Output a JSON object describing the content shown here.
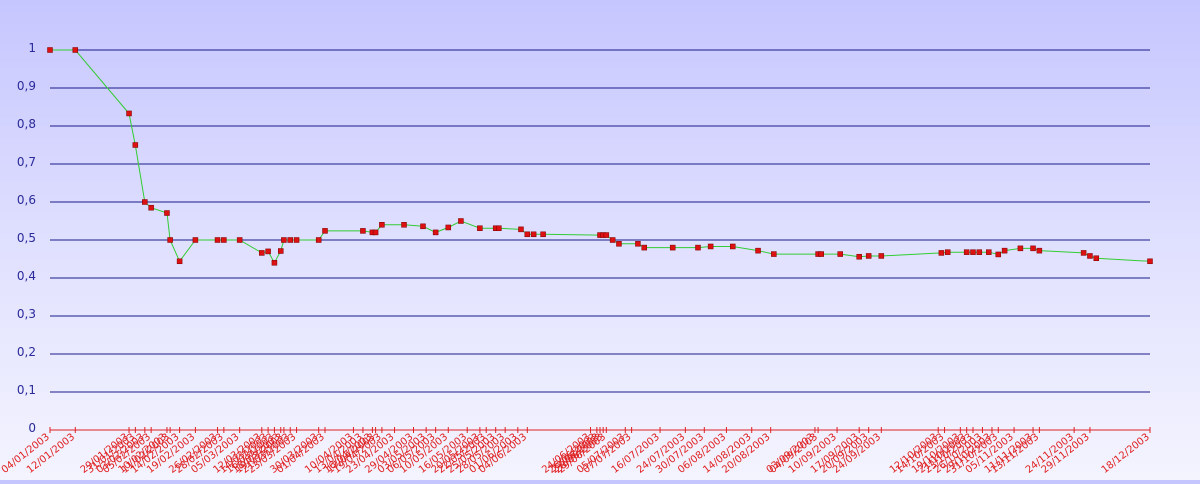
{
  "chart_data": {
    "type": "line",
    "title": "",
    "xlabel": "",
    "ylabel": "",
    "ylim": [
      0,
      1
    ],
    "yticks": [
      0,
      0.1,
      0.2,
      0.3,
      0.4,
      0.5,
      0.6,
      0.7,
      0.8,
      0.9,
      1
    ],
    "ytick_labels": [
      "0",
      "0,1",
      "0,2",
      "0,3",
      "0,4",
      "0,5",
      "0,6",
      "0,7",
      "0,8",
      "0,9",
      "1"
    ],
    "xlim": [
      "04/01/2003",
      "18/12/2003"
    ],
    "grid": true,
    "legend": "none",
    "colors": {
      "line": "#33cc33",
      "marker": "#dd1111",
      "grid": "#1a1a88",
      "ytick": "#2a2a9a",
      "xtick": "#e02020"
    },
    "series": [
      {
        "points": [
          [
            "04/01/2003",
            1.0
          ],
          [
            "12/01/2003",
            1.0
          ],
          [
            "29/01/2003",
            0.833
          ],
          [
            "31/01/2003",
            0.75
          ],
          [
            "03/02/2003",
            0.6
          ],
          [
            "05/02/2003",
            0.585
          ],
          [
            "10/02/2003",
            0.571
          ],
          [
            "11/02/2003",
            0.5
          ],
          [
            "14/02/2003",
            0.444
          ],
          [
            "19/02/2003",
            0.5
          ],
          [
            "26/02/2003",
            0.5
          ],
          [
            "28/02/2003",
            0.5
          ],
          [
            "05/03/2003",
            0.5
          ],
          [
            "12/03/2003",
            0.466
          ],
          [
            "14/03/2003",
            0.47
          ],
          [
            "16/03/2003",
            0.44
          ],
          [
            "18/03/2003",
            0.471
          ],
          [
            "19/03/2003",
            0.5
          ],
          [
            "21/03/2003",
            0.5
          ],
          [
            "23/03/2003",
            0.5
          ],
          [
            "30/03/2003",
            0.5
          ],
          [
            "01/04/2003",
            0.524
          ],
          [
            "13/04/2003",
            0.524
          ],
          [
            "16/04/2003",
            0.52
          ],
          [
            "17/04/2003",
            0.52
          ],
          [
            "19/04/2003",
            0.54
          ],
          [
            "26/04/2003",
            0.54
          ],
          [
            "02/05/2003",
            0.536
          ],
          [
            "06/05/2003",
            0.52
          ],
          [
            "10/05/2003",
            0.533
          ],
          [
            "14/05/2003",
            0.55
          ],
          [
            "20/05/2003",
            0.531
          ],
          [
            "25/05/2003",
            0.531
          ],
          [
            "26/05/2003",
            0.531
          ],
          [
            "02/06/2003",
            0.528
          ],
          [
            "04/06/2003",
            0.515
          ],
          [
            "06/06/2003",
            0.515
          ],
          [
            "09/06/2003",
            0.515
          ],
          [
            "27/06/2003",
            0.513
          ],
          [
            "28/06/2003",
            0.513
          ],
          [
            "29/06/2003",
            0.513
          ],
          [
            "01/07/2003",
            0.5
          ],
          [
            "03/07/2003",
            0.49
          ],
          [
            "09/07/2003",
            0.49
          ],
          [
            "11/07/2003",
            0.48
          ],
          [
            "20/07/2003",
            0.48
          ],
          [
            "28/07/2003",
            0.48
          ],
          [
            "01/08/2003",
            0.483
          ],
          [
            "08/08/2003",
            0.483
          ],
          [
            "16/08/2003",
            0.472
          ],
          [
            "21/08/2003",
            0.463
          ],
          [
            "04/09/2003",
            0.463
          ],
          [
            "05/09/2003",
            0.463
          ],
          [
            "11/09/2003",
            0.463
          ],
          [
            "17/09/2003",
            0.456
          ],
          [
            "20/09/2003",
            0.458
          ],
          [
            "24/09/2003",
            0.458
          ],
          [
            "13/10/2003",
            0.466
          ],
          [
            "15/10/2003",
            0.468
          ],
          [
            "21/10/2003",
            0.468
          ],
          [
            "23/10/2003",
            0.468
          ],
          [
            "25/10/2003",
            0.468
          ],
          [
            "28/10/2003",
            0.468
          ],
          [
            "31/10/2003",
            0.462
          ],
          [
            "02/11/2003",
            0.472
          ],
          [
            "07/11/2003",
            0.478
          ],
          [
            "11/11/2003",
            0.478
          ],
          [
            "13/11/2003",
            0.472
          ],
          [
            "27/11/2003",
            0.466
          ],
          [
            "29/11/2003",
            0.458
          ],
          [
            "01/12/2003",
            0.452
          ],
          [
            "18/12/2003",
            0.444
          ]
        ]
      }
    ],
    "x_tick_labels": [
      "04/01/2003",
      "12/01/2003",
      "29/01/2003",
      "31/01/2003",
      "03/02/2003",
      "05/02/2003",
      "10/02/2003",
      "11/02/2003",
      "14/02/2003",
      "19/02/2003",
      "26/02/2003",
      "28/02/2003",
      "05/03/2003",
      "12/03/2003",
      "14/03/2003",
      "16/03/2003",
      "18/03/2003",
      "19/03/2003",
      "21/03/2003",
      "23/03/2003",
      "30/03/2003",
      "01/04/2003",
      "10/04/2003",
      "13/04/2003",
      "16/04/2003",
      "17/04/2003",
      "19/04/2003",
      "23/04/2003",
      "29/04/2003",
      "03/05/2003",
      "06/05/2003",
      "10/05/2003",
      "16/05/2003",
      "20/05/2003",
      "22/05/2003",
      "25/05/2003",
      "28/05/2003",
      "01/06/2003",
      "04/06/2003",
      "24/06/2003",
      "26/06/2003",
      "27/06/2003",
      "28/06/2003",
      "29/06/2003",
      "05/07/2003",
      "07/07/2003",
      "16/07/2003",
      "24/07/2003",
      "30/07/2003",
      "06/08/2003",
      "14/08/2003",
      "20/08/2003",
      "03/09/2003",
      "04/09/2003",
      "10/09/2003",
      "17/09/2003",
      "20/09/2003",
      "24/09/2003",
      "12/10/2003",
      "14/10/2003",
      "19/10/2003",
      "21/10/2003",
      "23/10/2003",
      "26/10/2003",
      "29/10/2003",
      "31/10/2003",
      "05/11/2003",
      "11/11/2003",
      "13/11/2003",
      "24/11/2003",
      "29/11/2003",
      "18/12/2003"
    ]
  }
}
